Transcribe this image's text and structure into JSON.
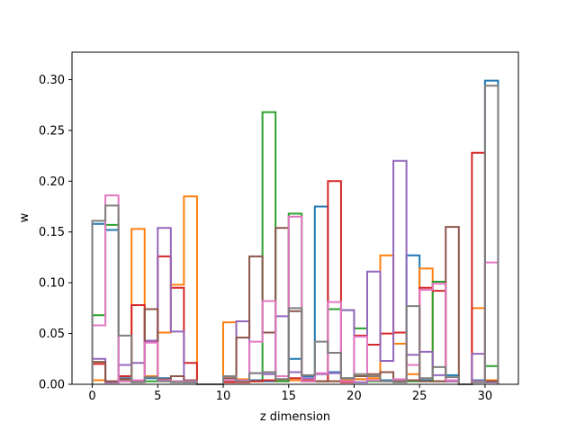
{
  "chart_data": {
    "type": "step-histogram",
    "xlabel": "z dimension",
    "ylabel": "w",
    "xlim": [
      -1.55,
      32.55
    ],
    "ylim": [
      0,
      0.327
    ],
    "xticks": [
      0,
      5,
      10,
      15,
      20,
      25,
      30
    ],
    "yticks": [
      0.0,
      0.05,
      0.1,
      0.15,
      0.2,
      0.25,
      0.3
    ],
    "bin_edges": [
      0,
      1,
      2,
      3,
      4,
      5,
      6,
      7,
      8,
      9,
      10,
      11,
      12,
      13,
      14,
      15,
      16,
      17,
      18,
      19,
      20,
      21,
      22,
      23,
      24,
      25,
      26,
      27,
      28,
      29,
      30,
      31
    ],
    "series": [
      {
        "color": "#1f77b4",
        "values": [
          0.158,
          0.152,
          0.006,
          0.003,
          0.006,
          0.006,
          0.003,
          0.002,
          0,
          0,
          0.003,
          0.003,
          0.004,
          0.003,
          0.005,
          0.025,
          0.008,
          0.175,
          0.012,
          0.006,
          0.005,
          0.004,
          0.004,
          0.003,
          0.127,
          0.004,
          0.003,
          0.009,
          0,
          0.004,
          0.299
        ]
      },
      {
        "color": "#ff7f0e",
        "values": [
          0.004,
          0.003,
          0.005,
          0.153,
          0.008,
          0.051,
          0.098,
          0.185,
          0,
          0,
          0.061,
          0.005,
          0.003,
          0.004,
          0.003,
          0.004,
          0.003,
          0.003,
          0.003,
          0.004,
          0.005,
          0.006,
          0.127,
          0.04,
          0.01,
          0.114,
          0.003,
          0.004,
          0,
          0.075,
          0.004
        ]
      },
      {
        "color": "#2ca02c",
        "values": [
          0.068,
          0.157,
          0.003,
          0.003,
          0.003,
          0.003,
          0.003,
          0.003,
          0,
          0,
          0.003,
          0.003,
          0.003,
          0.268,
          0.003,
          0.168,
          0.003,
          0.003,
          0.074,
          0.073,
          0.055,
          0.003,
          0.003,
          0.003,
          0.003,
          0.003,
          0.101,
          0.003,
          0,
          0.003,
          0.018
        ]
      },
      {
        "color": "#d62728",
        "values": [
          0.02,
          0.002,
          0.008,
          0.078,
          0.042,
          0.126,
          0.095,
          0.021,
          0,
          0,
          0.002,
          0.002,
          0.003,
          0.004,
          0.005,
          0.006,
          0.004,
          0.003,
          0.2,
          0.002,
          0.048,
          0.039,
          0.05,
          0.051,
          0.004,
          0.095,
          0.092,
          0.003,
          0,
          0.228,
          0.003
        ]
      },
      {
        "color": "#9467bd",
        "values": [
          0.025,
          0.002,
          0.019,
          0.021,
          0.043,
          0.154,
          0.052,
          0.003,
          0,
          0,
          0.004,
          0.062,
          0.011,
          0.01,
          0.067,
          0.012,
          0.006,
          0.01,
          0.011,
          0.073,
          0.002,
          0.111,
          0.023,
          0.22,
          0.029,
          0.032,
          0.009,
          0.003,
          0,
          0.03,
          0.002
        ]
      },
      {
        "color": "#8c564b",
        "values": [
          0.022,
          0.003,
          0.005,
          0.003,
          0.074,
          0.005,
          0.008,
          0.004,
          0,
          0,
          0.006,
          0.046,
          0.126,
          0.051,
          0.154,
          0.072,
          0.003,
          0.003,
          0.003,
          0.003,
          0.008,
          0.01,
          0.012,
          0.003,
          0.004,
          0.003,
          0.003,
          0.155,
          0,
          0.003,
          0.003
        ]
      },
      {
        "color": "#e377c2",
        "values": [
          0.058,
          0.186,
          0.003,
          0.004,
          0.041,
          0.004,
          0.003,
          0.003,
          0,
          0,
          0.004,
          0.004,
          0.042,
          0.082,
          0.008,
          0.165,
          0.003,
          0.011,
          0.081,
          0.003,
          0.047,
          0.004,
          0.003,
          0.005,
          0.019,
          0.093,
          0.099,
          0.004,
          0,
          0.003,
          0.12
        ]
      },
      {
        "color": "#7f7f7f",
        "values": [
          0.161,
          0.176,
          0.048,
          0.002,
          0.007,
          0.003,
          0.002,
          0.002,
          0,
          0,
          0.008,
          0.003,
          0.011,
          0.012,
          0.005,
          0.075,
          0.009,
          0.042,
          0.031,
          0.006,
          0.01,
          0.008,
          0.003,
          0.002,
          0.077,
          0.006,
          0.017,
          0.007,
          0,
          0.002,
          0.294
        ]
      }
    ]
  }
}
